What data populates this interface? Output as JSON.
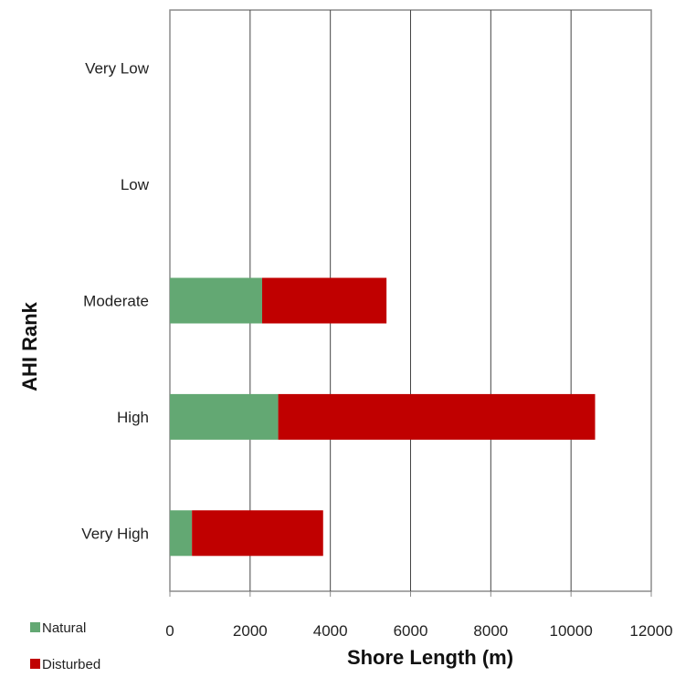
{
  "chart_data": {
    "type": "bar",
    "orientation": "horizontal",
    "stacked": true,
    "categories": [
      "Very Low",
      "Low",
      "Moderate",
      "High",
      "Very High"
    ],
    "series": [
      {
        "name": "Natural",
        "color": "#63a873",
        "values": [
          0,
          0,
          2300,
          2700,
          550
        ]
      },
      {
        "name": "Disturbed",
        "color": "#c00000",
        "values": [
          0,
          0,
          3100,
          7900,
          3270
        ]
      }
    ],
    "xlabel": "Shore Length (m)",
    "ylabel": "AHI Rank",
    "xlim": [
      0,
      12000
    ],
    "xticks": [
      "0",
      "2000",
      "4000",
      "6000",
      "8000",
      "10000",
      "12000"
    ],
    "grid": "vertical",
    "legend": "bottom-left"
  }
}
